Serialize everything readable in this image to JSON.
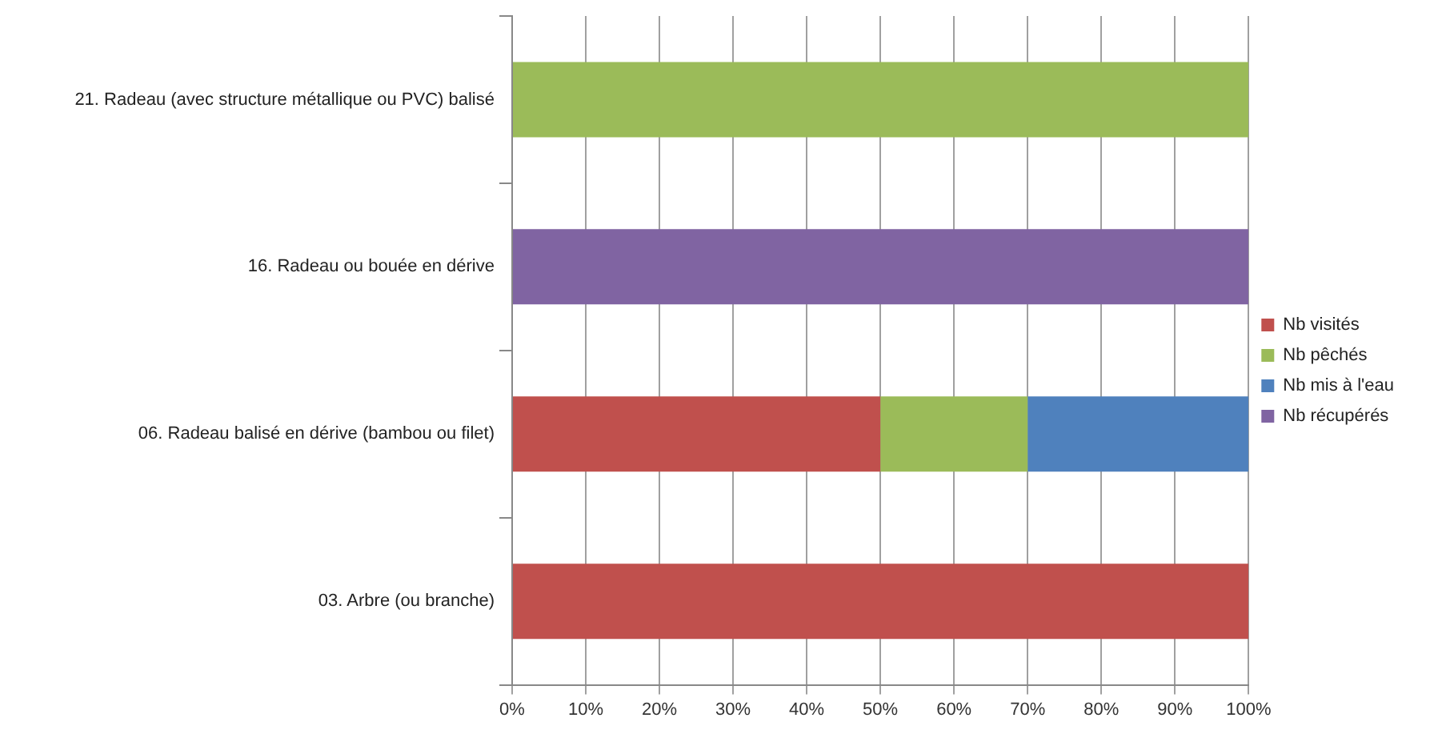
{
  "chart_data": {
    "type": "bar",
    "orientation": "horizontal",
    "stacked": true,
    "categories": [
      "21. Radeau (avec structure métallique ou PVC) balisé",
      "16. Radeau ou bouée en dérive",
      "06. Radeau balisé en dérive (bambou ou filet)",
      "03. Arbre (ou branche)"
    ],
    "series": [
      {
        "name": "Nb visités",
        "color": "#c0504d",
        "values": [
          0,
          0,
          50,
          100
        ]
      },
      {
        "name": "Nb pêchés",
        "color": "#9bbb59",
        "values": [
          100,
          0,
          20,
          0
        ]
      },
      {
        "name": "Nb mis à l'eau",
        "color": "#4f81bd",
        "values": [
          0,
          0,
          30,
          0
        ]
      },
      {
        "name": "Nb récupérés",
        "color": "#8064a2",
        "values": [
          0,
          100,
          0,
          0
        ]
      }
    ],
    "xlim": [
      0,
      100
    ],
    "xticks": [
      {
        "value": 0,
        "label": "0%"
      },
      {
        "value": 10,
        "label": "10%"
      },
      {
        "value": 20,
        "label": "20%"
      },
      {
        "value": 30,
        "label": "30%"
      },
      {
        "value": 40,
        "label": "40%"
      },
      {
        "value": 50,
        "label": "50%"
      },
      {
        "value": 60,
        "label": "60%"
      },
      {
        "value": 70,
        "label": "70%"
      },
      {
        "value": 80,
        "label": "80%"
      },
      {
        "value": 90,
        "label": "90%"
      },
      {
        "value": 100,
        "label": "100%"
      }
    ],
    "grid": "x",
    "legend": "right"
  }
}
